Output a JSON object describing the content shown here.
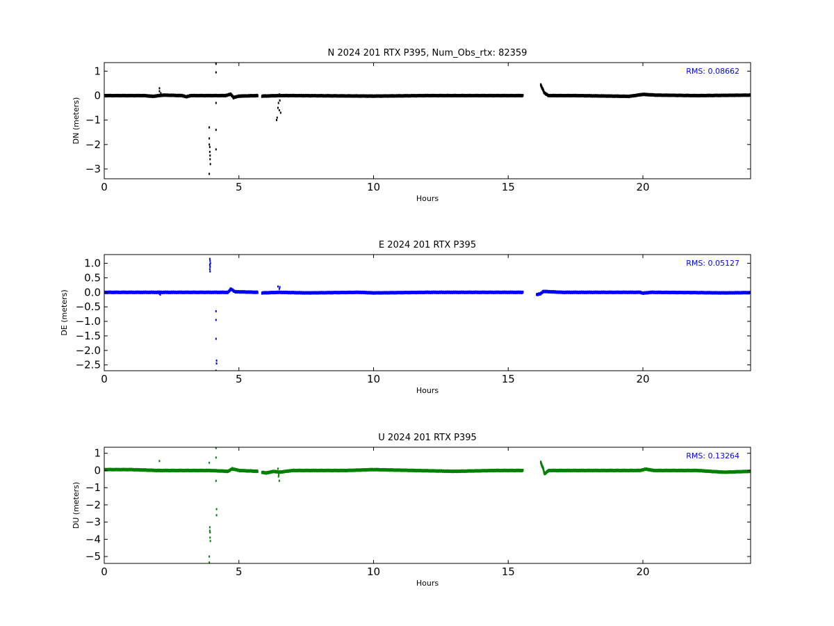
{
  "chart_data": [
    {
      "type": "scatter",
      "title": "N 2024 201 RTX  P395, Num_Obs_rtx: 82359",
      "xlabel": "Hours",
      "ylabel": "DN (meters)",
      "xlim": [
        0,
        24
      ],
      "ylim": [
        -3.4,
        1.35
      ],
      "xticks": [
        0,
        5,
        10,
        15,
        20
      ],
      "yticks": [
        1,
        0,
        -1,
        -2,
        -3
      ],
      "ytick_labels": [
        "1",
        "0",
        "−1",
        "−2",
        "−3"
      ],
      "grid": false,
      "color": "#000000",
      "rms_label": "RMS:  0.08662",
      "rms_color": "#0000ff",
      "gaps": [
        [
          5.7,
          5.85
        ],
        [
          15.55,
          16.2
        ]
      ],
      "baseline": [
        [
          0,
          0.0
        ],
        [
          1.5,
          0.0
        ],
        [
          1.8,
          -0.03
        ],
        [
          2.2,
          0.02
        ],
        [
          2.9,
          0.0
        ],
        [
          3.05,
          -0.05
        ],
        [
          3.2,
          0.0
        ],
        [
          4.5,
          0.0
        ],
        [
          4.7,
          0.06
        ],
        [
          4.8,
          -0.08
        ],
        [
          5.0,
          -0.02
        ],
        [
          5.7,
          0.0
        ],
        [
          5.85,
          -0.02
        ],
        [
          6.5,
          0.0
        ],
        [
          7.0,
          0.0
        ],
        [
          10.0,
          -0.02
        ],
        [
          12.0,
          0.0
        ],
        [
          14.0,
          0.0
        ],
        [
          15.55,
          0.0
        ],
        [
          16.2,
          0.45
        ],
        [
          16.35,
          0.1
        ],
        [
          16.5,
          0.0
        ],
        [
          17.5,
          0.0
        ],
        [
          19.5,
          -0.03
        ],
        [
          20.0,
          0.05
        ],
        [
          20.5,
          0.02
        ],
        [
          22.0,
          0.0
        ],
        [
          24.0,
          0.02
        ]
      ],
      "outliers": [
        [
          2.05,
          0.3
        ],
        [
          2.05,
          0.18
        ],
        [
          2.1,
          0.1
        ],
        [
          3.9,
          -1.3
        ],
        [
          3.9,
          -1.75
        ],
        [
          3.9,
          -2.0
        ],
        [
          3.92,
          -2.1
        ],
        [
          3.92,
          -2.3
        ],
        [
          3.93,
          -2.45
        ],
        [
          3.93,
          -2.6
        ],
        [
          3.94,
          -2.8
        ],
        [
          3.9,
          -3.2
        ],
        [
          3.9,
          -3.45
        ],
        [
          4.15,
          1.3
        ],
        [
          4.15,
          0.95
        ],
        [
          4.15,
          -0.3
        ],
        [
          4.15,
          -1.4
        ],
        [
          4.15,
          -2.2
        ],
        [
          6.4,
          -1.0
        ],
        [
          6.42,
          -0.9
        ],
        [
          6.45,
          -0.5
        ],
        [
          6.47,
          -0.3
        ],
        [
          6.5,
          -0.6
        ],
        [
          6.52,
          -0.2
        ],
        [
          6.55,
          -0.7
        ],
        [
          6.5,
          0.05
        ]
      ]
    },
    {
      "type": "scatter",
      "title": "E 2024 201 RTX  P395",
      "xlabel": "Hours",
      "ylabel": "DE (meters)",
      "xlim": [
        0,
        24
      ],
      "ylim": [
        -2.7,
        1.3
      ],
      "xticks": [
        0,
        5,
        10,
        15,
        20
      ],
      "yticks": [
        1.0,
        0.5,
        0.0,
        -0.5,
        -1.0,
        -1.5,
        -2.0,
        -2.5
      ],
      "ytick_labels": [
        "1.0",
        "0.5",
        "0.0",
        "−0.5",
        "−1.0",
        "−1.5",
        "−2.0",
        "−2.5"
      ],
      "grid": false,
      "color": "#0000ff",
      "rms_label": "RMS:  0.05127",
      "rms_color": "#0000ff",
      "gaps": [
        [
          5.7,
          5.85
        ],
        [
          15.55,
          16.05
        ]
      ],
      "baseline": [
        [
          0,
          0.0
        ],
        [
          2.0,
          0.0
        ],
        [
          3.9,
          0.0
        ],
        [
          4.6,
          0.0
        ],
        [
          4.7,
          0.12
        ],
        [
          4.85,
          0.02
        ],
        [
          5.7,
          0.0
        ],
        [
          5.85,
          -0.02
        ],
        [
          6.5,
          0.0
        ],
        [
          7.5,
          -0.02
        ],
        [
          9.5,
          0.0
        ],
        [
          10.0,
          -0.02
        ],
        [
          12.0,
          0.0
        ],
        [
          14.5,
          0.0
        ],
        [
          15.55,
          0.0
        ],
        [
          16.05,
          -0.08
        ],
        [
          16.2,
          -0.05
        ],
        [
          16.3,
          0.03
        ],
        [
          17.0,
          0.0
        ],
        [
          19.9,
          0.0
        ],
        [
          20.0,
          -0.03
        ],
        [
          20.3,
          0.0
        ],
        [
          22.0,
          -0.01
        ],
        [
          23.0,
          -0.02
        ],
        [
          24.0,
          -0.01
        ]
      ],
      "outliers": [
        [
          2.05,
          -0.05
        ],
        [
          2.08,
          -0.08
        ],
        [
          3.92,
          1.15
        ],
        [
          3.93,
          1.08
        ],
        [
          3.94,
          1.0
        ],
        [
          3.92,
          0.95
        ],
        [
          3.93,
          0.88
        ],
        [
          3.92,
          0.8
        ],
        [
          3.93,
          0.72
        ],
        [
          4.15,
          -0.65
        ],
        [
          4.15,
          -0.95
        ],
        [
          4.15,
          -1.6
        ],
        [
          4.17,
          -2.35
        ],
        [
          4.17,
          -2.45
        ],
        [
          4.15,
          -2.7
        ],
        [
          6.45,
          0.2
        ],
        [
          6.5,
          0.12
        ],
        [
          6.52,
          0.18
        ]
      ]
    },
    {
      "type": "scatter",
      "title": "U 2024 201 RTX  P395",
      "xlabel": "Hours",
      "ylabel": "DU (meters)",
      "xlim": [
        0,
        24
      ],
      "ylim": [
        -5.4,
        1.35
      ],
      "xticks": [
        0,
        5,
        10,
        15,
        20
      ],
      "yticks": [
        1,
        0,
        -1,
        -2,
        -3,
        -4,
        -5
      ],
      "ytick_labels": [
        "1",
        "0",
        "−1",
        "−2",
        "−3",
        "−4",
        "−5"
      ],
      "grid": false,
      "color": "#008000",
      "rms_label": "RMS:  0.13264",
      "rms_color": "#0000ff",
      "gaps": [
        [
          5.7,
          5.85
        ],
        [
          15.55,
          16.2
        ]
      ],
      "baseline": [
        [
          0,
          0.05
        ],
        [
          1.0,
          0.05
        ],
        [
          2.0,
          0.0
        ],
        [
          3.9,
          0.0
        ],
        [
          4.6,
          -0.05
        ],
        [
          4.75,
          0.1
        ],
        [
          5.0,
          0.0
        ],
        [
          5.7,
          -0.05
        ],
        [
          5.85,
          -0.1
        ],
        [
          6.0,
          -0.15
        ],
        [
          6.3,
          -0.05
        ],
        [
          6.5,
          -0.1
        ],
        [
          7.0,
          0.0
        ],
        [
          9.0,
          0.0
        ],
        [
          10.0,
          0.05
        ],
        [
          11.5,
          0.0
        ],
        [
          13.0,
          -0.05
        ],
        [
          14.5,
          0.0
        ],
        [
          15.55,
          0.0
        ],
        [
          16.2,
          0.5
        ],
        [
          16.3,
          0.1
        ],
        [
          16.35,
          -0.2
        ],
        [
          16.5,
          0.0
        ],
        [
          18.0,
          0.0
        ],
        [
          19.9,
          0.0
        ],
        [
          20.1,
          0.08
        ],
        [
          20.4,
          0.0
        ],
        [
          22.0,
          0.0
        ],
        [
          23.0,
          -0.1
        ],
        [
          24.0,
          -0.05
        ]
      ],
      "outliers": [
        [
          2.05,
          0.55
        ],
        [
          3.9,
          0.45
        ],
        [
          3.92,
          -3.3
        ],
        [
          3.93,
          -3.6
        ],
        [
          3.93,
          -3.9
        ],
        [
          3.94,
          -4.1
        ],
        [
          3.92,
          -3.5
        ],
        [
          3.9,
          -5.0
        ],
        [
          3.9,
          -5.35
        ],
        [
          4.15,
          1.3
        ],
        [
          4.15,
          0.75
        ],
        [
          4.15,
          -0.6
        ],
        [
          4.17,
          -2.25
        ],
        [
          4.17,
          -2.6
        ],
        [
          6.45,
          0.1
        ],
        [
          6.47,
          -0.35
        ],
        [
          6.5,
          -0.6
        ],
        [
          6.48,
          -0.25
        ]
      ]
    }
  ]
}
